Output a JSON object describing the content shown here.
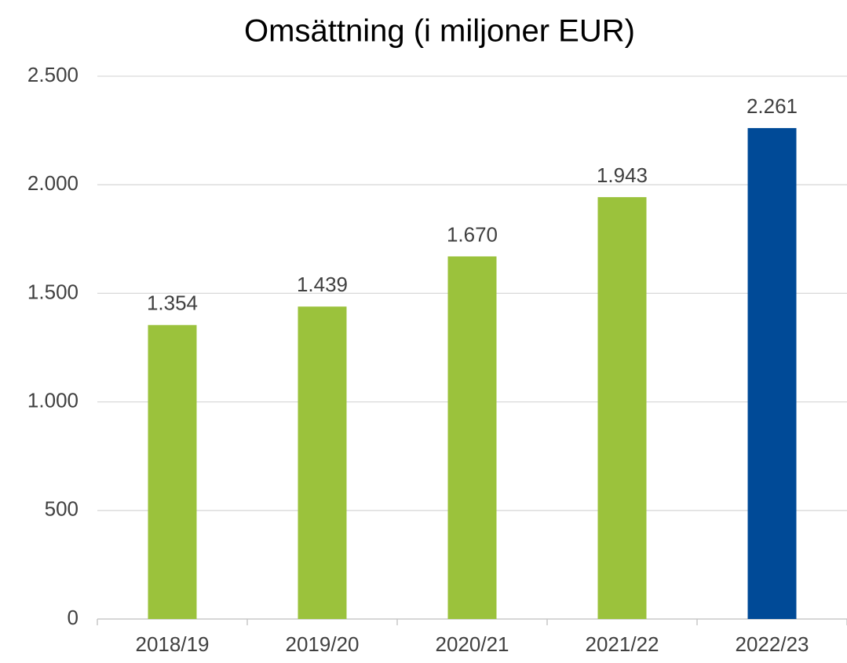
{
  "chart_data": {
    "type": "bar",
    "title": "Omsättning (i miljoner EUR)",
    "categories": [
      "2018/19",
      "2019/20",
      "2020/21",
      "2021/22",
      "2022/23"
    ],
    "values": [
      1354,
      1439,
      1670,
      1943,
      2261
    ],
    "value_labels": [
      "1.354",
      "1.439",
      "1.670",
      "1.943",
      "2.261"
    ],
    "colors": [
      "#9bc23c",
      "#9bc23c",
      "#9bc23c",
      "#9bc23c",
      "#004a97"
    ],
    "ylim": [
      0,
      2500
    ],
    "yticks": [
      0,
      500,
      {
        "value": 1000,
        "label": "1.000"
      },
      {
        "value": 1500,
        "label": "1.500"
      },
      {
        "value": 2000,
        "label": "2.000"
      },
      {
        "value": 2500,
        "label": "2.500"
      }
    ],
    "grid": true
  }
}
